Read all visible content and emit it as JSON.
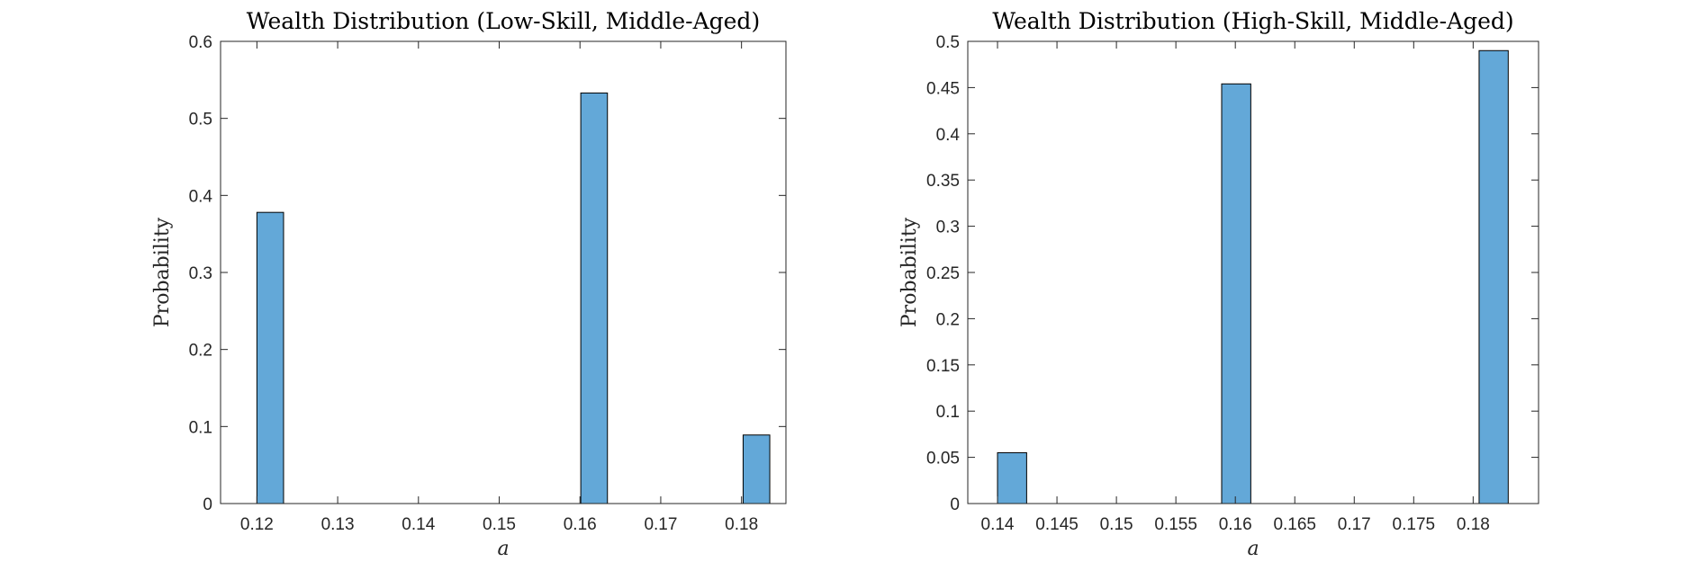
{
  "chart_data": [
    {
      "type": "bar",
      "title": "Wealth Distribution (Low-Skill, Middle-Aged)",
      "xlabel": "a",
      "ylabel": "Probability",
      "xlim": [
        0.1155,
        0.1855
      ],
      "ylim": [
        0,
        0.6
      ],
      "xticks": [
        0.12,
        0.13,
        0.14,
        0.15,
        0.16,
        0.17,
        0.18
      ],
      "xtick_labels": [
        "0.12",
        "0.13",
        "0.14",
        "0.15",
        "0.16",
        "0.17",
        "0.18"
      ],
      "yticks": [
        0,
        0.1,
        0.2,
        0.3,
        0.4,
        0.5,
        0.6
      ],
      "ytick_labels": [
        "0",
        "0.1",
        "0.2",
        "0.3",
        "0.4",
        "0.5",
        "0.6"
      ],
      "bin_width": 0.0033,
      "bars": [
        {
          "x_start": 0.12,
          "value": 0.378
        },
        {
          "x_start": 0.1601,
          "value": 0.533
        },
        {
          "x_start": 0.1802,
          "value": 0.089
        }
      ],
      "color": "#63a8d8",
      "grid": false
    },
    {
      "type": "bar",
      "title": "Wealth Distribution (High-Skill, Middle-Aged)",
      "xlabel": "a",
      "ylabel": "Probability",
      "xlim": [
        0.1375,
        0.1855
      ],
      "ylim": [
        0,
        0.5
      ],
      "xticks": [
        0.14,
        0.145,
        0.15,
        0.155,
        0.16,
        0.165,
        0.17,
        0.175,
        0.18
      ],
      "xtick_labels": [
        "0.14",
        "0.145",
        "0.15",
        "0.155",
        "0.16",
        "0.165",
        "0.17",
        "0.175",
        "0.18"
      ],
      "yticks": [
        0,
        0.05,
        0.1,
        0.15,
        0.2,
        0.25,
        0.3,
        0.35,
        0.4,
        0.45,
        0.5
      ],
      "ytick_labels": [
        "0",
        "0.05",
        "0.1",
        "0.15",
        "0.2",
        "0.25",
        "0.3",
        "0.35",
        "0.4",
        "0.45",
        "0.5"
      ],
      "bin_width": 0.00245,
      "bars": [
        {
          "x_start": 0.14,
          "value": 0.055
        },
        {
          "x_start": 0.15885,
          "value": 0.454
        },
        {
          "x_start": 0.1805,
          "value": 0.49
        }
      ],
      "color": "#63a8d8",
      "grid": false
    }
  ]
}
